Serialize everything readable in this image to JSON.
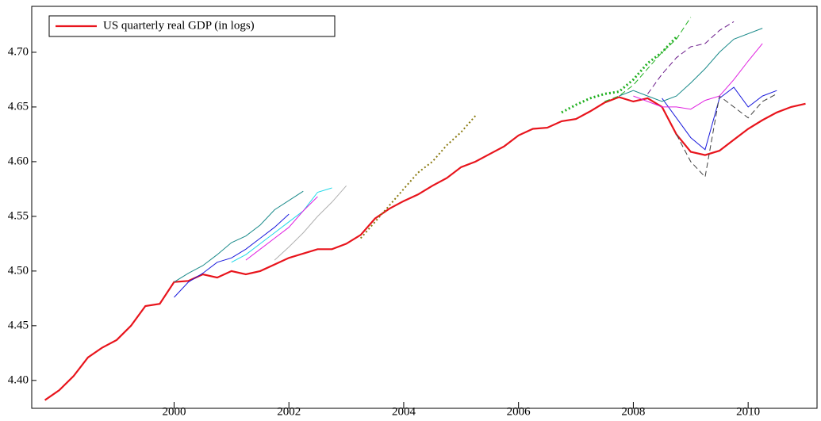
{
  "chart_data": {
    "type": "line",
    "xlim": [
      1997.52,
      2011.2
    ],
    "ylim": [
      4.3745,
      4.742
    ],
    "xticks": [
      2000,
      2002,
      2004,
      2006,
      2008,
      2010
    ],
    "yticks": [
      {
        "value": 4.4,
        "label": "4.40"
      },
      4.45,
      {
        "value": 4.5,
        "label": "4.50"
      },
      4.55,
      {
        "value": 4.6,
        "label": "4.60"
      },
      4.65,
      {
        "value": 4.7,
        "label": "4.70"
      }
    ],
    "legend": "upper left",
    "series": [
      {
        "name": "US quarterly real GDP (in logs)",
        "color": "#e8141c",
        "width": 2.2,
        "dash": "solid",
        "x": [
          1997.75,
          1998,
          1998.25,
          1998.5,
          1998.75,
          1999,
          1999.25,
          1999.5,
          1999.75,
          2000,
          2000.25,
          2000.5,
          2000.75,
          2001,
          2001.25,
          2001.5,
          2001.75,
          2002,
          2002.25,
          2002.5,
          2002.75,
          2003,
          2003.25,
          2003.5,
          2003.75,
          2004,
          2004.25,
          2004.5,
          2004.75,
          2005,
          2005.25,
          2005.5,
          2005.75,
          2006,
          2006.25,
          2006.5,
          2006.75,
          2007,
          2007.25,
          2007.5,
          2007.75,
          2008,
          2008.25,
          2008.5,
          2008.75,
          2009,
          2009.25,
          2009.5,
          2009.75,
          2010,
          2010.25,
          2010.5,
          2010.75,
          2011
        ],
        "values": [
          4.382,
          4.391,
          4.404,
          4.421,
          4.43,
          4.437,
          4.45,
          4.468,
          4.47,
          4.49,
          4.491,
          4.497,
          4.494,
          4.5,
          4.497,
          4.5,
          4.506,
          4.512,
          4.516,
          4.52,
          4.52,
          4.525,
          4.533,
          4.548,
          4.557,
          4.564,
          4.57,
          4.578,
          4.585,
          4.595,
          4.6,
          4.607,
          4.614,
          4.624,
          4.63,
          4.631,
          4.637,
          4.639,
          4.646,
          4.654,
          4.659,
          4.655,
          4.658,
          4.65,
          4.625,
          4.609,
          4.606,
          4.61,
          4.62,
          4.63,
          4.638,
          4.645,
          4.65,
          4.653
        ]
      },
      {
        "color": "#1a1adc",
        "width": 1,
        "dash": "solid",
        "x": [
          2000,
          2000.25,
          2000.5,
          2000.75,
          2001,
          2001.25,
          2001.5,
          2001.75,
          2002
        ],
        "values": [
          4.476,
          4.49,
          4.498,
          4.508,
          4.512,
          4.52,
          4.53,
          4.54,
          4.552
        ]
      },
      {
        "color": "#1a8a8a",
        "width": 1,
        "dash": "solid",
        "x": [
          2000,
          2000.25,
          2000.5,
          2000.75,
          2001,
          2001.25,
          2001.5,
          2001.75,
          2002.25
        ],
        "values": [
          4.49,
          4.498,
          4.505,
          4.515,
          4.526,
          4.532,
          4.542,
          4.556,
          4.573
        ]
      },
      {
        "color": "#20d8e8",
        "width": 1,
        "dash": "solid",
        "x": [
          2001,
          2001.25,
          2001.5,
          2001.75,
          2002,
          2002.25,
          2002.5,
          2002.75
        ],
        "values": [
          4.508,
          4.515,
          4.525,
          4.535,
          4.545,
          4.555,
          4.572,
          4.576
        ]
      },
      {
        "color": "#e020e0",
        "width": 1,
        "dash": "solid",
        "x": [
          2001.25,
          2001.5,
          2001.75,
          2002,
          2002.25,
          2002.5
        ],
        "values": [
          4.51,
          4.52,
          4.53,
          4.54,
          4.555,
          4.568
        ]
      },
      {
        "color": "#b0b0b0",
        "width": 1,
        "dash": "solid",
        "x": [
          2001.75,
          2002,
          2002.25,
          2002.5,
          2002.75,
          2003
        ],
        "values": [
          4.51,
          4.522,
          4.535,
          4.55,
          4.563,
          4.578
        ]
      },
      {
        "color": "#8a7a10",
        "width": 2,
        "dash": "dotted",
        "x": [
          2003.25,
          2003.5,
          2003.75,
          2004,
          2004.25,
          2004.5,
          2004.75,
          2005,
          2005.25
        ],
        "values": [
          4.53,
          4.545,
          4.56,
          4.575,
          4.59,
          4.6,
          4.615,
          4.627,
          4.642
        ]
      },
      {
        "color": "#20b020",
        "width": 3,
        "dash": "dotted",
        "x": [
          2006.75,
          2007,
          2007.25,
          2007.5,
          2007.75,
          2008,
          2008.25,
          2008.5,
          2008.75
        ],
        "values": [
          4.645,
          4.652,
          4.658,
          4.662,
          4.664,
          4.675,
          4.69,
          4.7,
          4.714
        ]
      },
      {
        "color": "#1a1adc",
        "width": 1,
        "dash": "solid",
        "x": [
          2008.5,
          2008.75,
          2009,
          2009.25,
          2009.5,
          2009.75,
          2010,
          2010.25,
          2010.5
        ],
        "values": [
          4.658,
          4.64,
          4.622,
          4.611,
          4.658,
          4.668,
          4.65,
          4.66,
          4.665
        ]
      },
      {
        "color": "#404040",
        "width": 1,
        "dash": "dashed",
        "x": [
          2008.75,
          2009,
          2009.25,
          2009.5,
          2009.75,
          2010,
          2010.25,
          2010.5
        ],
        "values": [
          4.625,
          4.6,
          4.586,
          4.66,
          4.65,
          4.64,
          4.655,
          4.662
        ]
      },
      {
        "color": "#20b020",
        "width": 1,
        "dash": "dashed",
        "x": [
          2007.5,
          2007.75,
          2008,
          2008.25,
          2008.5,
          2008.75,
          2009
        ],
        "values": [
          4.655,
          4.66,
          4.67,
          4.685,
          4.7,
          4.712,
          4.732
        ]
      },
      {
        "color": "#e020e0",
        "width": 1,
        "dash": "solid",
        "x": [
          2008,
          2008.25,
          2008.5,
          2008.75,
          2009,
          2009.25,
          2009.5,
          2009.75,
          2010,
          2010.25
        ],
        "values": [
          4.66,
          4.655,
          4.65,
          4.65,
          4.648,
          4.656,
          4.66,
          4.675,
          4.692,
          4.708
        ]
      },
      {
        "color": "#1a8a8a",
        "width": 1,
        "dash": "solid",
        "x": [
          2007.75,
          2008,
          2008.25,
          2008.5,
          2008.75,
          2009,
          2009.25,
          2009.5,
          2009.75,
          2010.25
        ],
        "values": [
          4.66,
          4.665,
          4.66,
          4.655,
          4.66,
          4.672,
          4.685,
          4.7,
          4.712,
          4.722
        ]
      },
      {
        "color": "#6a1a8a",
        "width": 1,
        "dash": "dashed",
        "x": [
          2008.25,
          2008.5,
          2008.75,
          2009,
          2009.25,
          2009.5,
          2009.75
        ],
        "values": [
          4.662,
          4.68,
          4.695,
          4.705,
          4.708,
          4.72,
          4.728
        ]
      }
    ]
  }
}
